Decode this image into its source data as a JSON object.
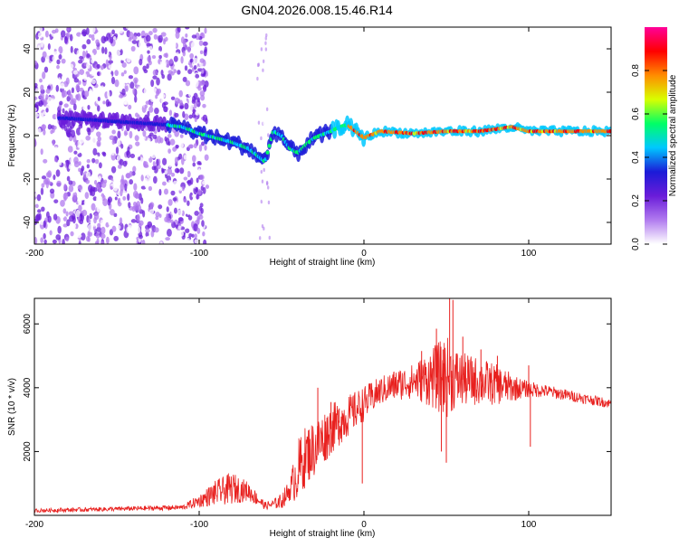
{
  "title": "GN04.2026.008.15.46.R14",
  "chart_data": [
    {
      "type": "heatmap",
      "name": "spectrogram",
      "xlabel": "Height of straight line (km)",
      "ylabel": "Frequency (Hz)",
      "xlim": [
        -200,
        150
      ],
      "ylim": [
        -50,
        50
      ],
      "xticks": [
        -200,
        -100,
        0,
        100
      ],
      "yticks": [
        -40,
        -20,
        0,
        20,
        40
      ],
      "colorbar": {
        "label": "Normalized spectral amplitude",
        "ticks": [
          0.0,
          0.2,
          0.4,
          0.6,
          0.8
        ],
        "range": [
          0,
          1
        ],
        "colors": [
          "#ffffff",
          "#b17bef",
          "#6a1cd9",
          "#1b1bd8",
          "#00c8ff",
          "#00ff66",
          "#d8ff00",
          "#ff8c00",
          "#ff0000",
          "#ff0099"
        ]
      },
      "ridge": {
        "x": [
          -180,
          -160,
          -140,
          -120,
          -110,
          -100,
          -90,
          -80,
          -70,
          -65,
          -60,
          -55,
          -50,
          -45,
          -40,
          -35,
          -30,
          -20,
          -15,
          -10,
          -5,
          0,
          10,
          30,
          50,
          70,
          80,
          90,
          100,
          120,
          150
        ],
        "y": [
          8,
          7,
          6,
          5,
          4,
          1,
          -1,
          -3,
          -6,
          -9,
          -12,
          2,
          0,
          -6,
          -8,
          -4,
          -1,
          2,
          4,
          5,
          2,
          -1,
          2,
          1,
          2,
          2,
          3,
          4,
          2,
          2,
          2
        ]
      }
    },
    {
      "type": "line",
      "name": "snr",
      "color": "#e8201e",
      "xlabel": "Height of straight line (km)",
      "ylabel": "SNR (10 * v/v)",
      "xlim": [
        -200,
        150
      ],
      "ylim": [
        0,
        6800
      ],
      "xticks": [
        -200,
        -100,
        0,
        100
      ],
      "yticks": [
        2000,
        4000,
        6000
      ],
      "envelope": {
        "x": [
          -200,
          -150,
          -110,
          -100,
          -90,
          -80,
          -70,
          -60,
          -55,
          -50,
          -45,
          -40,
          -35,
          -30,
          -25,
          -20,
          -15,
          -10,
          -5,
          0,
          10,
          20,
          30,
          40,
          50,
          55,
          60,
          70,
          80,
          90,
          100,
          110,
          120,
          130,
          140,
          150
        ],
        "y": [
          150,
          200,
          250,
          450,
          700,
          850,
          750,
          300,
          350,
          450,
          800,
          1400,
          1900,
          2100,
          2400,
          2700,
          2900,
          3100,
          3300,
          3500,
          3900,
          4100,
          4200,
          4300,
          4350,
          4300,
          4250,
          4200,
          4100,
          4000,
          3950,
          3900,
          3800,
          3700,
          3600,
          3500
        ]
      },
      "noise": {
        "x": [
          -200,
          -110,
          -100,
          -90,
          -80,
          -70,
          -60,
          -55,
          -45,
          -40,
          -30,
          -20,
          -10,
          0,
          10,
          20,
          30,
          40,
          50,
          55,
          60,
          70,
          80,
          90,
          95,
          100,
          110,
          130,
          150
        ],
        "y": [
          60,
          80,
          200,
          400,
          500,
          300,
          120,
          150,
          350,
          1000,
          900,
          800,
          650,
          550,
          450,
          500,
          550,
          900,
          1300,
          1000,
          850,
          750,
          650,
          450,
          320,
          260,
          200,
          170,
          150
        ]
      },
      "spikes": [
        {
          "x": -28,
          "y": 4000
        },
        {
          "x": -20,
          "y": 3550
        },
        {
          "x": -15,
          "y": 3350
        },
        {
          "x": -1,
          "y": 1000
        },
        {
          "x": 35,
          "y": 5150
        },
        {
          "x": 44,
          "y": 5850
        },
        {
          "x": 48,
          "y": 5200
        },
        {
          "x": 52,
          "y": 6800
        },
        {
          "x": 54,
          "y": 6750
        },
        {
          "x": 60,
          "y": 5600
        },
        {
          "x": 71,
          "y": 5200
        },
        {
          "x": 81,
          "y": 5000
        },
        {
          "x": 100,
          "y": 4700
        },
        {
          "x": 101,
          "y": 2150
        },
        {
          "x": 50,
          "y": 1650
        },
        {
          "x": 47,
          "y": 2000
        }
      ]
    }
  ]
}
